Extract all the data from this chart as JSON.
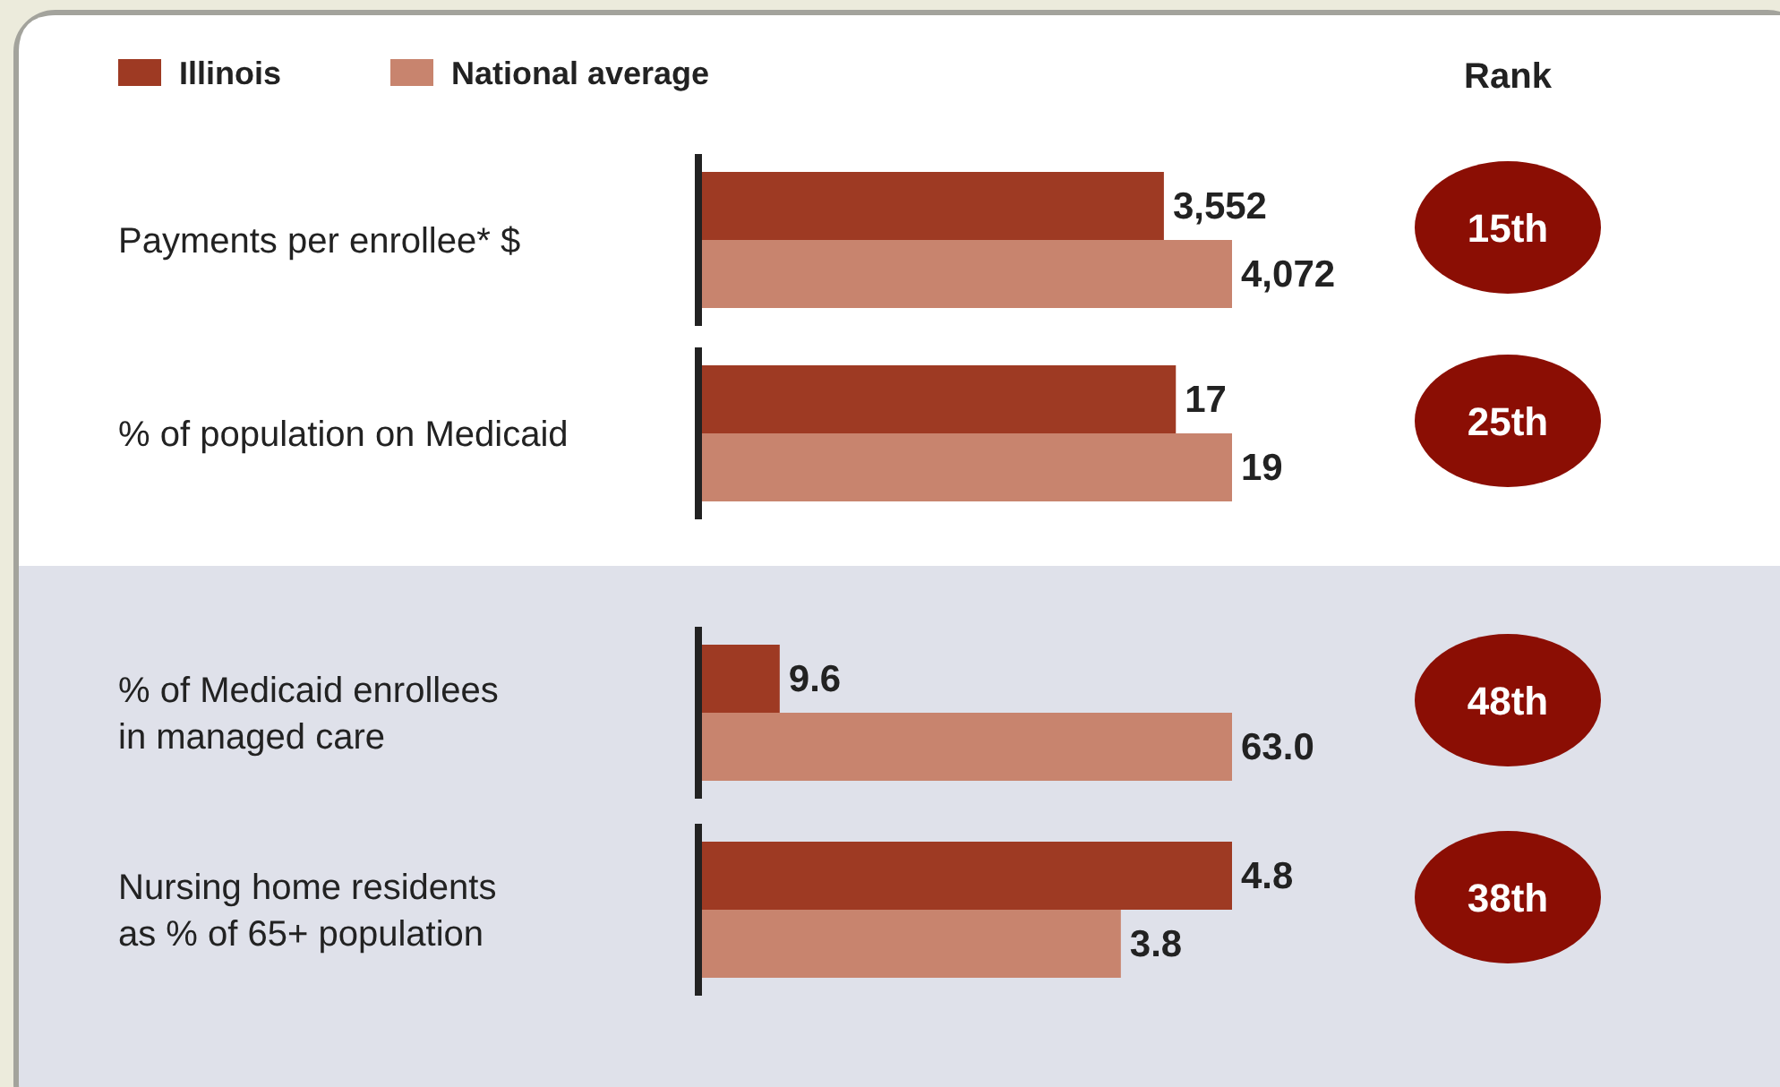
{
  "chart_data": [
    {
      "type": "bar",
      "orientation": "horizontal",
      "categories": [
        "Payments per enrollee* $"
      ],
      "legend": "top left",
      "annotations": [
        "Rank",
        "15th"
      ],
      "series": [
        {
          "name": "Illinois",
          "color": "#9e3a23",
          "values": [
            3552
          ],
          "value_labels": [
            "3,552"
          ]
        },
        {
          "name": "National average",
          "color": "#c8846e",
          "values": [
            4072
          ],
          "value_labels": [
            "4,072"
          ]
        }
      ]
    },
    {
      "type": "bar",
      "orientation": "horizontal",
      "categories": [
        "% of population on Medicaid"
      ],
      "annotations": [
        "25th"
      ],
      "series": [
        {
          "color": "#9e3a23",
          "values": [
            17
          ],
          "value_labels": [
            "17"
          ]
        },
        {
          "color": "#c8846e",
          "values": [
            19
          ],
          "value_labels": [
            "19"
          ]
        }
      ]
    },
    {
      "type": "bar",
      "orientation": "horizontal",
      "categories": [
        "% of Medicaid enrollees in managed care"
      ],
      "annotations": [
        "48th"
      ],
      "series": [
        {
          "color": "#9e3a23",
          "values": [
            9.6
          ],
          "value_labels": [
            "9.6"
          ]
        },
        {
          "color": "#c8846e",
          "values": [
            63.0
          ],
          "value_labels": [
            "63.0"
          ]
        }
      ]
    },
    {
      "type": "bar",
      "orientation": "horizontal",
      "categories": [
        "Nursing home residents as % of 65+ population"
      ],
      "annotations": [
        "38th"
      ],
      "series": [
        {
          "color": "#9e3a23",
          "values": [
            4.8
          ],
          "value_labels": [
            "4.8"
          ]
        },
        {
          "color": "#c8846e",
          "values": [
            3.8
          ],
          "value_labels": [
            "3.8"
          ]
        }
      ]
    }
  ]
}
